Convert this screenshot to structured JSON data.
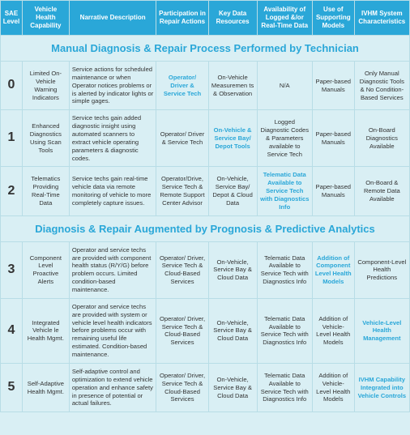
{
  "headers": {
    "c0": "SAE Level",
    "c1": "Vehicle Health Capability",
    "c2": "Narrative Description",
    "c3": "Participation in Repair Actions",
    "c4": "Key Data Resources",
    "c5": "Availability of Logged &/or Real-Time Data",
    "c6": "Use of Supporting Models",
    "c7": "IVHM System Characteristics"
  },
  "sections": {
    "s1": "Manual Diagnosis & Repair Process Performed by Technician",
    "s2": "Diagnosis & Repair Augmented by Prognosis & Predictive Analytics"
  },
  "rows": [
    {
      "level": "0",
      "cap": "Limited On-Vehicle Warning Indicators",
      "narr": "Service actions for scheduled maintenance or when Operator notices problems or is alerted by indicator lights or simple gages.",
      "part": "Operator/ Driver & Service Tech",
      "part_hl": true,
      "key": "On-Vehicle Measuremen ts & Observation",
      "avail": "N/A",
      "supp": "Paper-based Manuals",
      "char": "Only Manual Diagnostic Tools & No Condition-Based Services"
    },
    {
      "level": "1",
      "cap": "Enhanced Diagnostics Using Scan Tools",
      "narr": "Service techs gain added diagnostic insight using automated scanners to extract vehicle operating parameters & diagnostic codes.",
      "part": "Operator/ Driver & Service Tech",
      "key": "On-Vehicle & Service Bay/ Depot Tools",
      "key_hl": true,
      "avail": "Logged Diagnostic Codes & Parameters available to Service Tech",
      "supp": "Paper-based Manuals",
      "char": "On-Board Diagnostics Available"
    },
    {
      "level": "2",
      "cap": "Telematics Providing Real-Time Data",
      "narr": "Service techs gain real-time vehicle data via remote monitoring of vehicle to more completely capture issues.",
      "part": "Operator/Drive, Service Tech & Remote Support Center Advisor",
      "key": "On-Vehicle, Service Bay/ Depot & Cloud Data",
      "avail": "Telematic Data Available to Service Tech with Diagnostics Info",
      "avail_hl": true,
      "supp": "Paper-based Manuals",
      "char": "On-Board & Remote Data Available"
    },
    {
      "level": "3",
      "cap": "Component Level Proactive Alerts",
      "narr": "Operator and service techs are provided with component health status (R/Y/G) before problem occurs. Limited condition-based maintenance.",
      "part": "Operator/ Driver, Service Tech & Cloud-Based Services",
      "key": "On-Vehicle, Service Bay & Cloud Data",
      "avail": "Telematic Data Available to Service Tech with Diagnostics Info",
      "supp": "Addition of Component Level Health Models",
      "supp_hl": true,
      "char": "Component-Level Health Predictions"
    },
    {
      "level": "4",
      "cap": "Integrated Vehicle le Health Mgmt.",
      "narr": "Operator and service techs are provided with system or vehicle level health indicators before problems occur with remaining useful life estimated. Condition-based maintenance.",
      "part": "Operator/ Driver, Service Tech & Cloud-Based Services",
      "key": "On-Vehicle, Service Bay & Cloud Data",
      "avail": "Telematic Data Available to Service Tech with Diagnostics Info",
      "supp": "Addition of Vehicle-Level Health Models",
      "char": "Vehicle-Level Health Management",
      "char_hl": true
    },
    {
      "level": "5",
      "cap": "Self-Adaptive Health Mgmt.",
      "narr": "Self-adaptive control and optimization to extend vehicle operation and enhance safety in presence of potential or actual failures.",
      "part": "Operator/ Driver, Service Tech & Cloud-Based Services",
      "key": "On-Vehicle, Service Bay & Cloud Data",
      "avail": "Telematic Data Available to Service Tech with Diagnostics Info",
      "supp": "Addition of Vehicle-Level Health Models",
      "char": "IVHM Capability Integrated into Vehicle Controls",
      "char_hl": true
    }
  ]
}
